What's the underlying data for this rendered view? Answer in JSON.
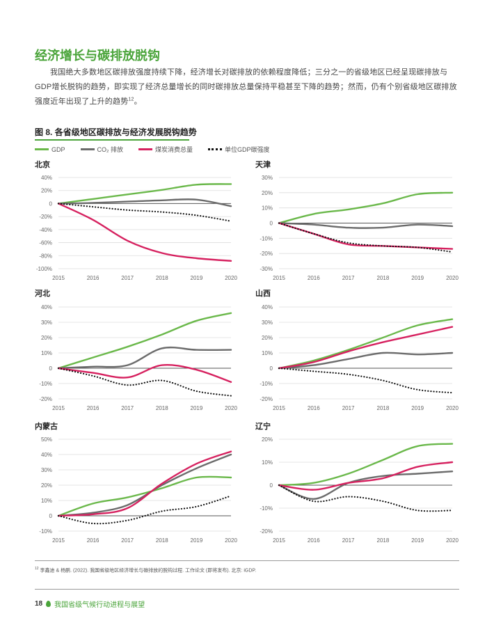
{
  "section_title": "经济增长与碳排放脱钩",
  "paragraph": "我国绝大多数地区碳排放强度持续下降，经济增长对碳排放的依赖程度降低；三分之一的省级地区已经呈现碳排放与GDP增长脱钩的趋势，即实现了经济总量增长的同时碳排放总量保持平稳甚至下降的趋势；然而，仍有个别省级地区碳排放强度近年出现了上升的趋势",
  "paragraph_ref": "12",
  "paragraph_end": "。",
  "figure_label": "图 8.",
  "figure_title": "各省级地区碳排放与经济发展脱钩趋势",
  "legend": [
    {
      "name": "GDP",
      "color": "#6ab84a",
      "style": "solid"
    },
    {
      "name": "CO₂ 排放",
      "color": "#6b6b6b",
      "style": "solid"
    },
    {
      "name": "煤炭消费总量",
      "color": "#d6215f",
      "style": "solid"
    },
    {
      "name": "单位GDP碳强度",
      "color": "#111111",
      "style": "dotted"
    }
  ],
  "chart_data": [
    {
      "type": "line",
      "title": "北京",
      "x": [
        "2015",
        "2016",
        "2017",
        "2018",
        "2019",
        "2020"
      ],
      "yticks": [
        40,
        20,
        0,
        -20,
        -40,
        -60,
        -80,
        -100
      ],
      "ylim": [
        -100,
        40
      ],
      "ytick_labels": [
        "40%",
        "20%",
        "0",
        "-20%",
        "-40%",
        "-60%",
        "-80%",
        "-100%"
      ],
      "series": [
        {
          "name": "GDP",
          "values": [
            0,
            7,
            14,
            21,
            29,
            30
          ]
        },
        {
          "name": "CO₂ 排放",
          "values": [
            0,
            1,
            3,
            5,
            6,
            -4
          ]
        },
        {
          "name": "煤炭消费总量",
          "values": [
            0,
            -25,
            -57,
            -76,
            -84,
            -88
          ]
        },
        {
          "name": "单位GDP碳强度",
          "values": [
            0,
            -5,
            -10,
            -13,
            -18,
            -27
          ]
        }
      ]
    },
    {
      "type": "line",
      "title": "天津",
      "x": [
        "2015",
        "2016",
        "2017",
        "2018",
        "2019",
        "2020"
      ],
      "yticks": [
        30,
        20,
        10,
        0,
        -10,
        -20,
        -30
      ],
      "ylim": [
        -30,
        30
      ],
      "ytick_labels": [
        "30%",
        "20%",
        "10%",
        "0",
        "-10%",
        "-20%",
        "-30%"
      ],
      "series": [
        {
          "name": "GDP",
          "values": [
            0,
            6,
            9,
            13,
            19,
            20
          ]
        },
        {
          "name": "CO₂ 排放",
          "values": [
            0,
            -1,
            -3,
            -3,
            -1,
            -2
          ]
        },
        {
          "name": "煤炭消费总量",
          "values": [
            0,
            -7,
            -14,
            -15,
            -16,
            -17
          ]
        },
        {
          "name": "单位GDP碳强度",
          "values": [
            0,
            -7,
            -13,
            -15,
            -16,
            -19
          ]
        }
      ]
    },
    {
      "type": "line",
      "title": "河北",
      "x": [
        "2015",
        "2016",
        "2017",
        "2018",
        "2019",
        "2020"
      ],
      "yticks": [
        40,
        30,
        20,
        10,
        0,
        -10,
        -20
      ],
      "ylim": [
        -20,
        40
      ],
      "ytick_labels": [
        "40%",
        "30%",
        "20%",
        "10%",
        "0",
        "-10%",
        "-20%"
      ],
      "series": [
        {
          "name": "GDP",
          "values": [
            0,
            7,
            14,
            22,
            31,
            36
          ]
        },
        {
          "name": "CO₂ 排放",
          "values": [
            0,
            1,
            2,
            13,
            12,
            12
          ]
        },
        {
          "name": "煤炭消费总量",
          "values": [
            0,
            -3,
            -6,
            2,
            -1,
            -9
          ]
        },
        {
          "name": "单位GDP碳强度",
          "values": [
            0,
            -5,
            -11,
            -8,
            -15,
            -18
          ]
        }
      ]
    },
    {
      "type": "line",
      "title": "山西",
      "x": [
        "2015",
        "2016",
        "2017",
        "2018",
        "2019",
        "2020"
      ],
      "yticks": [
        40,
        30,
        20,
        10,
        0,
        -10,
        -20
      ],
      "ylim": [
        -20,
        40
      ],
      "ytick_labels": [
        "40%",
        "30%",
        "20%",
        "10%",
        "0",
        "-10%",
        "-20%"
      ],
      "series": [
        {
          "name": "GDP",
          "values": [
            0,
            5,
            12,
            20,
            28,
            32
          ]
        },
        {
          "name": "CO₂ 排放",
          "values": [
            0,
            2,
            6,
            10,
            9,
            10
          ]
        },
        {
          "name": "煤炭消费总量",
          "values": [
            0,
            4,
            11,
            17,
            22,
            27
          ]
        },
        {
          "name": "单位GDP碳强度",
          "values": [
            0,
            -2,
            -4,
            -8,
            -14,
            -16
          ]
        }
      ]
    },
    {
      "type": "line",
      "title": "内蒙古",
      "x": [
        "2015",
        "2016",
        "2017",
        "2018",
        "2019",
        "2020"
      ],
      "yticks": [
        50,
        40,
        30,
        20,
        10,
        0,
        -10
      ],
      "ylim": [
        -10,
        50
      ],
      "ytick_labels": [
        "50%",
        "40%",
        "30%",
        "20%",
        "10%",
        "0",
        "-10%"
      ],
      "series": [
        {
          "name": "GDP",
          "values": [
            0,
            8,
            12,
            18,
            25,
            25
          ]
        },
        {
          "name": "CO₂ 排放",
          "values": [
            0,
            2,
            7,
            20,
            31,
            40
          ]
        },
        {
          "name": "煤炭消费总量",
          "values": [
            0,
            1,
            5,
            21,
            34,
            42
          ]
        },
        {
          "name": "单位GDP碳强度",
          "values": [
            0,
            -5,
            -3,
            3,
            6,
            13
          ]
        }
      ]
    },
    {
      "type": "line",
      "title": "辽宁",
      "x": [
        "2015",
        "2016",
        "2017",
        "2018",
        "2019",
        "2020"
      ],
      "yticks": [
        20,
        10,
        0,
        -10,
        -20
      ],
      "ylim": [
        -20,
        20
      ],
      "ytick_labels": [
        "20%",
        "10%",
        "0",
        "-10%",
        "-20%"
      ],
      "series": [
        {
          "name": "GDP",
          "values": [
            0,
            1,
            5,
            11,
            17,
            18
          ]
        },
        {
          "name": "CO₂ 排放",
          "values": [
            0,
            -6,
            1,
            4,
            5,
            6
          ]
        },
        {
          "name": "煤炭消费总量",
          "values": [
            0,
            -2,
            1,
            3,
            8,
            10
          ]
        },
        {
          "name": "单位GDP碳强度",
          "values": [
            0,
            -7,
            -5,
            -7,
            -11,
            -11
          ]
        }
      ]
    }
  ],
  "footnote_num": "12",
  "footnote": "李鑫迪 & 杨鹏. (2022). 我国省级地区经济增长与碳排放的脱钩过程. 工作论文 (即将发布). 北京: iGDP.",
  "page_number": "18",
  "page_footer": "我国省级气候行动进程与展望"
}
